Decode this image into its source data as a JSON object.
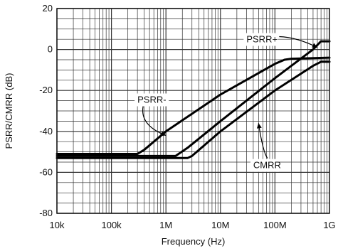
{
  "chart_data": {
    "type": "line",
    "title": "",
    "xlabel": "Frequency (Hz)",
    "ylabel": "PSRR/CMRR (dB)",
    "x_scale": "log",
    "xlim": [
      10000,
      1000000000
    ],
    "ylim": [
      -80,
      20
    ],
    "grid": true,
    "x_ticks": [
      {
        "value": 10000,
        "label": "10k"
      },
      {
        "value": 100000,
        "label": "100k"
      },
      {
        "value": 1000000,
        "label": "1M"
      },
      {
        "value": 10000000,
        "label": "10M"
      },
      {
        "value": 100000000,
        "label": "100M"
      },
      {
        "value": 1000000000,
        "label": "1G"
      }
    ],
    "y_ticks": [
      {
        "value": 20,
        "label": "20"
      },
      {
        "value": 0,
        "label": "0"
      },
      {
        "value": -20,
        "label": "-20"
      },
      {
        "value": -40,
        "label": "-40"
      },
      {
        "value": -60,
        "label": "-60"
      },
      {
        "value": -80,
        "label": "-80"
      }
    ],
    "series": [
      {
        "name": "PSRR-",
        "points": [
          [
            10000,
            -51
          ],
          [
            300000,
            -51
          ],
          [
            400000,
            -49
          ],
          [
            1000000,
            -40
          ],
          [
            10000000,
            -22
          ],
          [
            100000000,
            -7
          ],
          [
            150000000,
            -5
          ],
          [
            200000000,
            -4.5
          ],
          [
            1000000000,
            -4
          ]
        ]
      },
      {
        "name": "PSRR+",
        "points": [
          [
            10000,
            -52
          ],
          [
            1500000,
            -52
          ],
          [
            2500000,
            -48
          ],
          [
            10000000,
            -35
          ],
          [
            100000000,
            -14
          ],
          [
            500000000,
            0
          ],
          [
            700000000,
            4
          ],
          [
            1000000000,
            4
          ]
        ]
      },
      {
        "name": "CMRR",
        "points": [
          [
            10000,
            -53
          ],
          [
            2500000,
            -53
          ],
          [
            3000000,
            -52
          ],
          [
            10000000,
            -40
          ],
          [
            100000000,
            -20
          ],
          [
            500000000,
            -8
          ],
          [
            700000000,
            -6
          ],
          [
            1000000000,
            -6
          ]
        ]
      }
    ],
    "annotations": [
      {
        "text": "PSRR+",
        "x": 30000000,
        "y": 3.5,
        "arrow_to": [
          600000000,
          1
        ],
        "arrow_via": [
          250000000,
          6
        ]
      },
      {
        "text": "PSRR-",
        "x": 300000,
        "y": -26,
        "arrow_to": [
          1000000,
          -42
        ],
        "arrow_via": [
          330000,
          -37
        ]
      },
      {
        "text": "CMRR",
        "x": 40000000,
        "y": -58,
        "arrow_to": [
          50000000,
          -36
        ],
        "arrow_via": [
          60000000,
          -50
        ]
      }
    ]
  }
}
